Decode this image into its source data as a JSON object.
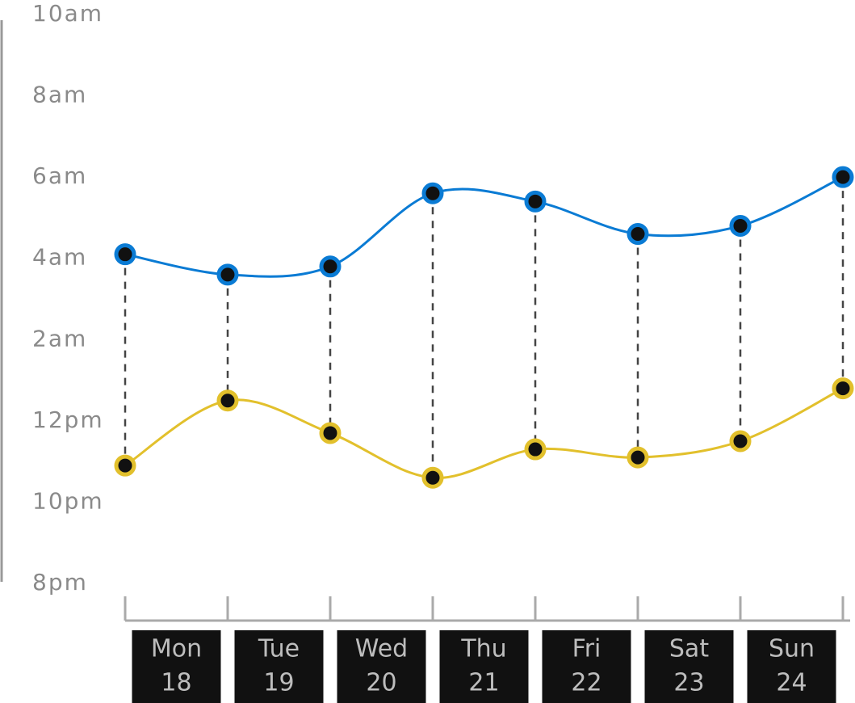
{
  "chart_data": {
    "type": "line",
    "x": [
      0,
      1,
      2,
      3,
      4,
      5,
      6,
      7
    ],
    "xlim": [
      0,
      7
    ],
    "xticks": [
      0,
      1,
      2,
      3,
      4,
      5,
      6,
      7
    ],
    "day_labels": [
      {
        "day": "Mon",
        "date": "18"
      },
      {
        "day": "Tue",
        "date": "19"
      },
      {
        "day": "Wed",
        "date": "20"
      },
      {
        "day": "Thu",
        "date": "21"
      },
      {
        "day": "Fri",
        "date": "22"
      },
      {
        "day": "Sat",
        "date": "23"
      },
      {
        "day": "Sun",
        "date": "24"
      }
    ],
    "series": [
      {
        "color": "#0a7bd4",
        "values": [
          28.1,
          27.6,
          27.8,
          29.6,
          29.4,
          28.6,
          28.8,
          30.0
        ]
      },
      {
        "color": "#e2c02c",
        "values": [
          22.9,
          24.5,
          23.7,
          22.6,
          23.3,
          23.1,
          23.5,
          24.8
        ]
      }
    ],
    "ylim": [
      20,
      34
    ],
    "yticks": [
      {
        "value": 20,
        "label": "8pm"
      },
      {
        "value": 22,
        "label": "10pm"
      },
      {
        "value": 24,
        "label": "12pm"
      },
      {
        "value": 26,
        "label": "2am"
      },
      {
        "value": 28,
        "label": "4am"
      },
      {
        "value": 30,
        "label": "6am"
      },
      {
        "value": 32,
        "label": "8am"
      },
      {
        "value": 34,
        "label": "10am"
      }
    ]
  }
}
